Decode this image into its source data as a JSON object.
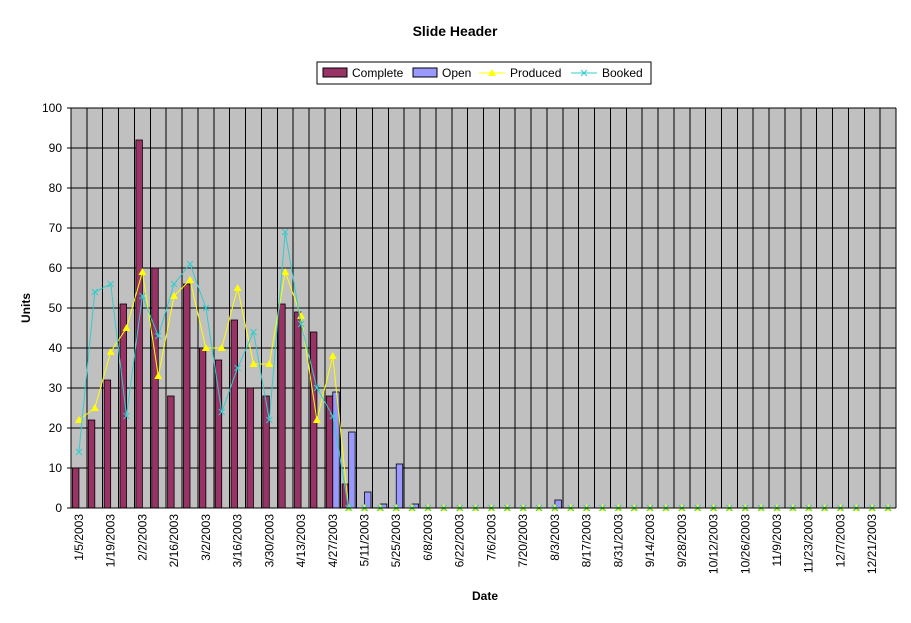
{
  "chart_data": {
    "type": "bar",
    "title": "Slide Header",
    "xlabel": "Date",
    "ylabel": "Units",
    "ylim": [
      0,
      100
    ],
    "yticks": [
      0,
      10,
      20,
      30,
      40,
      50,
      60,
      70,
      80,
      90,
      100
    ],
    "grid": true,
    "legend_position": "top-center",
    "plot_background": "#c0c0c0",
    "x": [
      "1/5/2003",
      "1/12/2003",
      "1/19/2003",
      "1/26/2003",
      "2/2/2003",
      "2/9/2003",
      "2/16/2003",
      "2/23/2003",
      "3/2/2003",
      "3/9/2003",
      "3/16/2003",
      "3/23/2003",
      "3/30/2003",
      "4/6/2003",
      "4/13/2003",
      "4/20/2003",
      "4/27/2003",
      "5/4/2003",
      "5/11/2003",
      "5/18/2003",
      "5/25/2003",
      "6/1/2003",
      "6/8/2003",
      "6/15/2003",
      "6/22/2003",
      "6/29/2003",
      "7/6/2003",
      "7/13/2003",
      "7/20/2003",
      "7/27/2003",
      "8/3/2003",
      "8/10/2003",
      "8/17/2003",
      "8/24/2003",
      "8/31/2003",
      "9/7/2003",
      "9/14/2003",
      "9/21/2003",
      "9/28/2003",
      "10/5/2003",
      "10/12/2003",
      "10/19/2003",
      "10/26/2003",
      "11/2/2003",
      "11/9/2003",
      "11/16/2003",
      "11/23/2003",
      "11/30/2003",
      "12/7/2003",
      "12/14/2003",
      "12/21/2003",
      "12/28/2003"
    ],
    "tick_labels": [
      "1/5/2003",
      "1/19/2003",
      "2/2/2003",
      "2/16/2003",
      "3/2/2003",
      "3/16/2003",
      "3/30/2003",
      "4/13/2003",
      "4/27/2003",
      "5/11/2003",
      "5/25/2003",
      "6/8/2003",
      "6/22/2003",
      "7/6/2003",
      "7/20/2003",
      "8/3/2003",
      "8/17/2003",
      "8/31/2003",
      "9/14/2003",
      "9/28/2003",
      "10/12/2003",
      "10/26/2003",
      "11/9/2003",
      "11/23/2003",
      "12/7/2003",
      "12/21/2003"
    ],
    "series": [
      {
        "name": "Complete",
        "kind": "bar",
        "color": "#993366",
        "values": [
          10,
          22,
          32,
          51,
          92,
          60,
          28,
          56,
          40,
          37,
          47,
          30,
          28,
          51,
          49,
          44,
          28,
          6,
          0,
          0,
          0,
          0,
          0,
          0,
          0,
          0,
          0,
          0,
          0,
          0,
          0,
          0,
          0,
          0,
          0,
          0,
          0,
          0,
          0,
          0,
          0,
          0,
          0,
          0,
          0,
          0,
          0,
          0,
          0,
          0,
          0,
          0
        ]
      },
      {
        "name": "Open",
        "kind": "bar",
        "color": "#9999ff",
        "values": [
          0,
          0,
          0,
          0,
          0,
          0,
          0,
          0,
          0,
          0,
          0,
          0,
          0,
          0,
          0,
          0,
          29,
          19,
          4,
          1,
          11,
          1,
          0,
          0,
          0,
          0,
          0,
          0,
          0,
          0,
          2,
          0,
          0,
          0,
          0,
          0,
          0,
          0,
          0,
          0,
          0,
          0,
          0,
          0,
          0,
          0,
          0,
          0,
          0,
          0,
          0,
          0
        ]
      },
      {
        "name": "Produced",
        "kind": "line",
        "color": "#ffff00",
        "marker": "triangle",
        "values": [
          22,
          25,
          39,
          45,
          59,
          33,
          53,
          57,
          40,
          40,
          55,
          36,
          36,
          59,
          48,
          22,
          38,
          0,
          0,
          0,
          0,
          0,
          0,
          0,
          0,
          0,
          0,
          0,
          0,
          0,
          0,
          0,
          0,
          0,
          0,
          0,
          0,
          0,
          0,
          0,
          0,
          0,
          0,
          0,
          0,
          0,
          0,
          0,
          0,
          0,
          0,
          0
        ]
      },
      {
        "name": "Booked",
        "kind": "line",
        "color": "#33cccc",
        "marker": "x",
        "values": [
          14,
          54,
          56,
          23,
          53,
          43,
          56,
          61,
          50,
          24,
          35,
          44,
          22,
          69,
          46,
          30,
          23,
          0,
          0,
          0,
          0,
          0,
          0,
          0,
          0,
          0,
          0,
          0,
          0,
          0,
          0,
          0,
          0,
          0,
          0,
          0,
          0,
          0,
          0,
          0,
          0,
          0,
          0,
          0,
          0,
          0,
          0,
          0,
          0,
          0,
          0,
          0
        ]
      }
    ]
  }
}
